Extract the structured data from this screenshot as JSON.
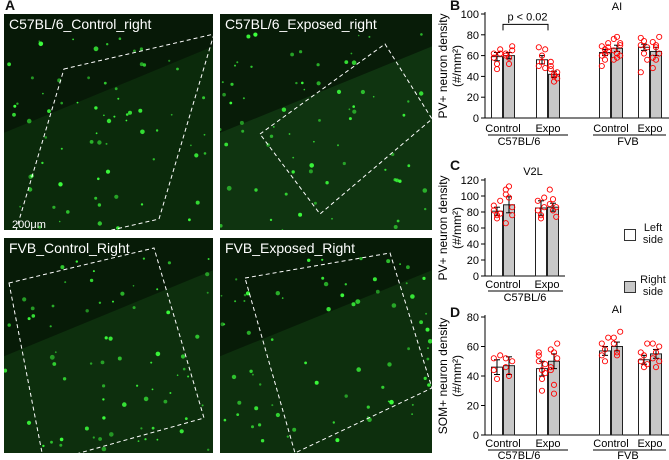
{
  "panels": {
    "a": "A",
    "b": "B",
    "c": "C",
    "d": "D"
  },
  "micrographs": [
    {
      "label": "C57BL/6_Control_right",
      "fill": "#0b2a0b"
    },
    {
      "label": "C57BL/6_Exposed_right",
      "fill": "#0f3410"
    },
    {
      "label": "FVB_Control_Right",
      "fill": "#0d2f0d"
    },
    {
      "label": "FVB_Exposed_Right",
      "fill": "#0d2f0d"
    }
  ],
  "scale_bar": "200μm",
  "legend": {
    "left": [
      "Left",
      "side"
    ],
    "right": [
      "Right",
      "side"
    ]
  },
  "colors": {
    "dot": "#ff0000",
    "bar_left": "#ffffff",
    "bar_right": "#c8c8c8",
    "cells": "#3cff3c"
  },
  "chart_data": [
    {
      "type": "bar",
      "title": "AI",
      "ylabel": [
        "PV+ neuron density",
        "(#/mm²)"
      ],
      "ylim": [
        0,
        100
      ],
      "yticks": [
        0,
        20,
        40,
        60,
        80,
        100
      ],
      "categories": [
        "Control",
        "Expo",
        "Control",
        "Expo"
      ],
      "groups": [
        "C57BL/6",
        "FVB"
      ],
      "series": [
        {
          "name": "Left side",
          "values": [
            59,
            56,
            63,
            68
          ],
          "err": [
            4,
            4,
            3,
            3
          ]
        },
        {
          "name": "Right side",
          "values": [
            60,
            42,
            67,
            64
          ],
          "err": [
            3,
            3,
            3,
            4
          ]
        }
      ],
      "annotation": "p < 0.02"
    },
    {
      "type": "bar",
      "title": "V2L",
      "ylabel": [
        "PV+ neuron density",
        "(#/mm²)"
      ],
      "ylim": [
        0,
        120
      ],
      "yticks": [
        0,
        20,
        40,
        60,
        80,
        100,
        120
      ],
      "categories": [
        "Control",
        "Expo"
      ],
      "groups": [
        "C57BL/6"
      ],
      "series": [
        {
          "name": "Left side",
          "values": [
            81,
            85
          ],
          "err": [
            5,
            9
          ]
        },
        {
          "name": "Right side",
          "values": [
            89,
            86
          ],
          "err": [
            10,
            5
          ]
        }
      ]
    },
    {
      "type": "bar",
      "title": "AI",
      "ylabel": [
        "SOM+ neuron density",
        "(#/mm²)"
      ],
      "ylim": [
        0,
        80
      ],
      "yticks": [
        0,
        20,
        40,
        60,
        80
      ],
      "categories": [
        "Control",
        "Expo",
        "Control",
        "Expo"
      ],
      "groups": [
        "C57BL/6",
        "FVB"
      ],
      "series": [
        {
          "name": "Left side",
          "values": [
            46,
            45,
            57,
            51
          ],
          "err": [
            5,
            5,
            3,
            3
          ]
        },
        {
          "name": "Right side",
          "values": [
            47,
            50,
            60,
            55
          ],
          "err": [
            6,
            5,
            3,
            3
          ]
        }
      ]
    }
  ]
}
